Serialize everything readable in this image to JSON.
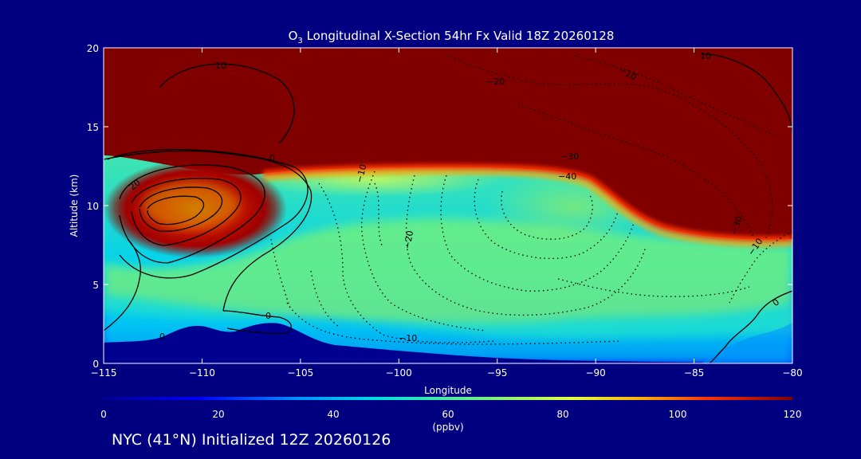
{
  "chart_data": {
    "type": "heatmap",
    "title_prefix": "O",
    "title_subscript": "3",
    "title_rest": " Longitudinal X-Section 54hr  Fx Valid 18Z 20260128",
    "xlabel": "Longitude",
    "ylabel": "Altitude (km)",
    "xlim": [
      -115,
      -80
    ],
    "ylim": [
      0,
      20
    ],
    "x_ticks": [
      -115,
      -110,
      -105,
      -100,
      -95,
      -90,
      -85,
      -80
    ],
    "x_tick_labels": [
      "−115",
      "−110",
      "−105",
      "−100",
      "−95",
      "−90",
      "−85",
      "−80"
    ],
    "y_ticks": [
      0,
      5,
      10,
      15,
      20
    ],
    "y_tick_labels": [
      "0",
      "5",
      "10",
      "15",
      "20"
    ],
    "colorbar": {
      "min": 0,
      "max": 120,
      "ticks": [
        "0",
        "20",
        "40",
        "60",
        "80",
        "100",
        "120"
      ],
      "units": "(ppbv)",
      "colors": [
        "#000090",
        "#0000ff",
        "#0090ff",
        "#00e0e0",
        "#70f080",
        "#e0ff40",
        "#ffb000",
        "#ff3000",
        "#800000"
      ]
    },
    "contour_labels": [
      "10",
      "20",
      "0",
      "10",
      "−10",
      "−20",
      "−30",
      "−40",
      "−10",
      "−20",
      "−30",
      "−10",
      "−10",
      "0",
      "0",
      "0"
    ],
    "surface_terrain_km": [
      [
        -115,
        1.3
      ],
      [
        -112,
        1.0
      ],
      [
        -110,
        2.3
      ],
      [
        -108,
        1.9
      ],
      [
        -106,
        2.4
      ],
      [
        -104,
        1.6
      ],
      [
        -100,
        0.9
      ],
      [
        -95,
        0.5
      ],
      [
        -90,
        0.4
      ],
      [
        -85,
        0.3
      ],
      [
        -80,
        0.2
      ]
    ]
  },
  "footer": {
    "caption": "NYC (41°N) Initialized 12Z 20260126"
  }
}
